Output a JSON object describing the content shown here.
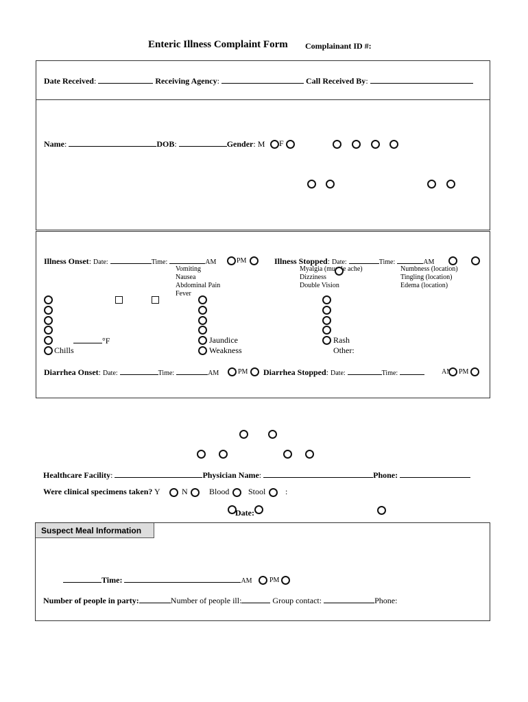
{
  "header": {
    "title": "Enteric Illness Complaint Form",
    "complainant_id_label": "Complainant ID #:"
  },
  "receipt": {
    "date_received": "Date Received",
    "receiving_agency": "Receiving Agency",
    "call_received_by": "Call Received By"
  },
  "person": {
    "name": "Name",
    "dob": "DOB",
    "gender": "Gender",
    "m": "M",
    "f": "F"
  },
  "illness": {
    "onset": "Illness Onset",
    "stopped": "Illness Stopped",
    "date": "Date:",
    "time": "Time:",
    "am": "AM",
    "pm": "PM",
    "symptoms_col1": [
      "Vomiting",
      "Nausea",
      "Abdominal Pain",
      "Fever"
    ],
    "symptoms_col2": [
      "Myalgia (muscle ache)",
      "Dizziness",
      "Double Vision"
    ],
    "symptoms_col3": [
      "Numbness (location)",
      "Tingling (location)",
      "Edema (location)"
    ],
    "fahrenheit": "°F",
    "chills": "Chills",
    "jaundice": "Jaundice",
    "weakness": "Weakness",
    "rash": "Rash",
    "other": "Other:",
    "diarrhea_onset": "Diarrhea Onset",
    "diarrhea_stopped": "Diarrhea Stopped"
  },
  "healthcare": {
    "facility": "Healthcare Facility",
    "physician": "Physician Name",
    "phone": "Phone:",
    "specimens": "Were clinical specimens taken?",
    "y": "Y",
    "n": "N",
    "blood": "Blood",
    "stool": "Stool",
    "colon": ":",
    "date": "Date:"
  },
  "meal": {
    "tab": "Suspect Meal Information",
    "time": "Time:",
    "am": "AM",
    "pm": "PM",
    "party": "Number of people in party:",
    "ill": "Number of people ill:",
    "group_contact": "Group contact:",
    "phone": "Phone:"
  }
}
